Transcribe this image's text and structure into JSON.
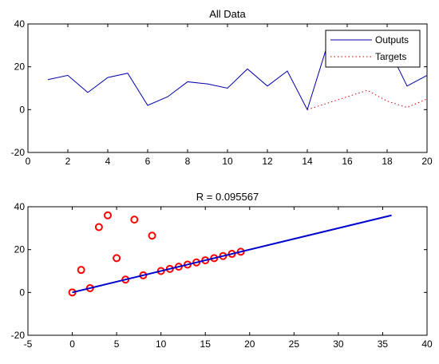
{
  "chart_data": [
    {
      "type": "line",
      "title": "All Data",
      "xlim": [
        0,
        20
      ],
      "ylim": [
        -20,
        40
      ],
      "xticks": [
        0,
        2,
        4,
        6,
        8,
        10,
        12,
        14,
        16,
        18,
        20
      ],
      "yticks": [
        -20,
        0,
        20,
        40
      ],
      "legend": "top-right",
      "series": [
        {
          "name": "Outputs",
          "color": "#0000aa",
          "style": "solid",
          "x": [
            1,
            2,
            3,
            4,
            5,
            6,
            7,
            8,
            9,
            10,
            11,
            12,
            13,
            14,
            15,
            16,
            17,
            18,
            19,
            20
          ],
          "y": [
            14,
            16,
            8,
            15,
            17,
            2,
            6,
            13,
            12,
            10,
            19,
            11,
            18,
            0,
            30,
            32,
            33,
            30,
            11,
            16
          ]
        },
        {
          "name": "Targets",
          "color": "#cc0000",
          "style": "dotted",
          "x": [
            14,
            15,
            16,
            17,
            18,
            19,
            20
          ],
          "y": [
            0,
            3,
            6,
            9,
            4,
            1,
            5
          ]
        }
      ]
    },
    {
      "type": "scatter",
      "title": "R = 0.095567",
      "xlim": [
        -5,
        40
      ],
      "ylim": [
        -20,
        40
      ],
      "xticks": [
        -5,
        0,
        5,
        10,
        15,
        20,
        25,
        30,
        35,
        40
      ],
      "yticks": [
        -20,
        0,
        20,
        40
      ],
      "series": [
        {
          "marker": "circle",
          "color": "#ff0000",
          "x": [
            0,
            1,
            2,
            3,
            4,
            5,
            6,
            7,
            8,
            9,
            10,
            11,
            12,
            13,
            14,
            15,
            16,
            17,
            18,
            19
          ],
          "y": [
            0,
            10.5,
            2,
            30.5,
            36,
            16,
            6,
            34,
            8,
            26.5,
            10,
            11,
            12,
            13,
            14,
            15,
            16,
            17,
            18,
            19
          ]
        },
        {
          "kind": "fit-line",
          "color": "#0000cc",
          "x": [
            0,
            36
          ],
          "y": [
            0,
            36
          ]
        }
      ]
    }
  ]
}
